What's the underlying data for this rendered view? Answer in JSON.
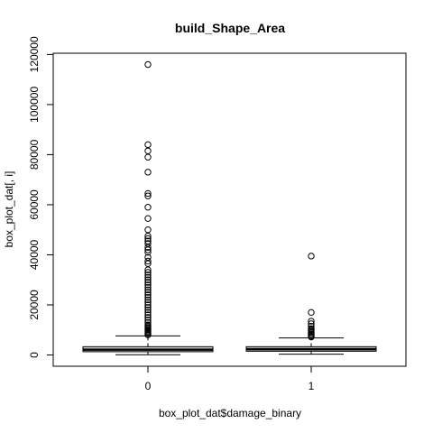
{
  "chart_data": {
    "type": "boxplot",
    "title": "build_Shape_Area",
    "xlabel": "box_plot_dat$damage_binary",
    "ylabel": "box_plot_dat[, i]",
    "categories": [
      "0",
      "1"
    ],
    "ylim": [
      -4500,
      120500
    ],
    "yticks": [
      0,
      20000,
      40000,
      60000,
      80000,
      100000,
      120000
    ],
    "ytick_labels": [
      "0",
      "20000",
      "40000",
      "60000",
      "80000",
      "100000",
      "120000"
    ],
    "grid": false,
    "legend": "none",
    "boxes": [
      {
        "category": "0",
        "whisker_low": 100,
        "q1": 1300,
        "median": 2100,
        "q3": 3300,
        "whisker_high": 7600,
        "outliers": [
          116000,
          84000,
          81500,
          79000,
          73000,
          64500,
          63500,
          59000,
          54500,
          50000,
          47500,
          46500,
          45500,
          44500,
          43000,
          42000,
          41000,
          39000,
          37500,
          36500,
          34000,
          33000,
          32000,
          31000,
          30000,
          29000,
          28000,
          27000,
          26000,
          25000,
          24000,
          23000,
          22000,
          21000,
          20000,
          19000,
          18000,
          17000,
          16000,
          15000,
          14000,
          13000,
          12000,
          11500,
          11000,
          10500,
          10000,
          9500,
          9000,
          8500,
          8000
        ]
      },
      {
        "category": "1",
        "whisker_low": 300,
        "q1": 1500,
        "median": 2300,
        "q3": 3300,
        "whisker_high": 6800,
        "outliers": [
          39500,
          17000,
          13500,
          12500,
          11500,
          10500,
          10000,
          9500,
          9000,
          8500,
          8000,
          7500,
          7200
        ]
      }
    ]
  }
}
